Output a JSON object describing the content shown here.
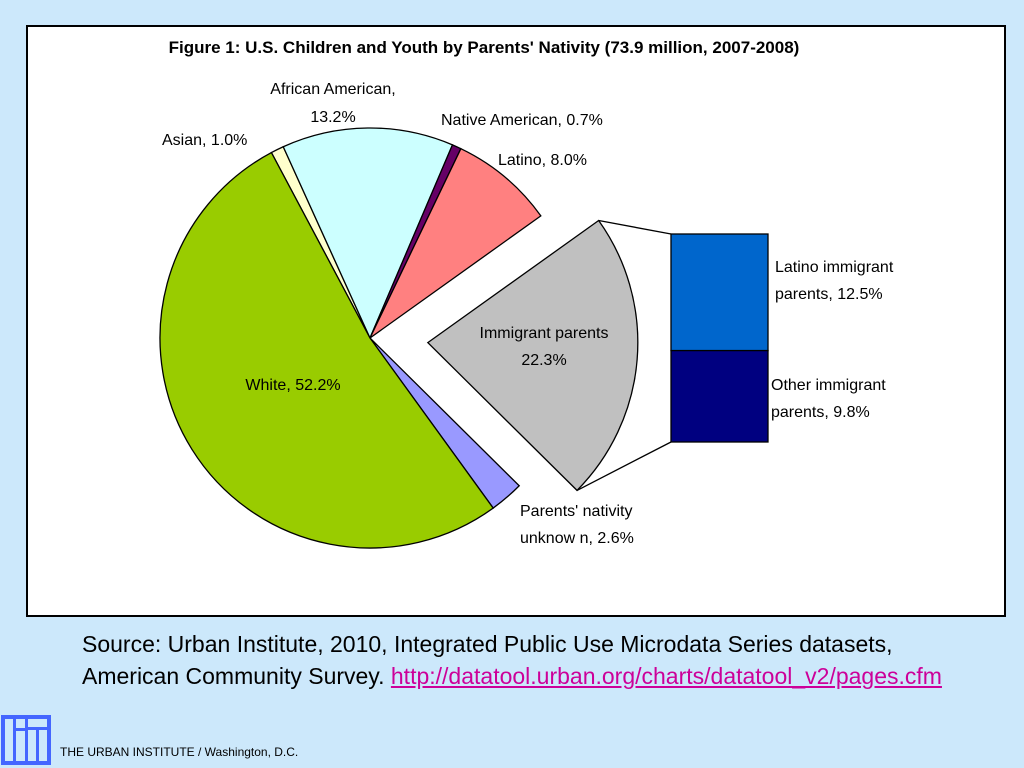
{
  "chart_data": {
    "type": "pie",
    "title": "Figure 1: U.S. Children and Youth by Parents' Nativity (73.9 million, 2007-2008)",
    "slices": [
      {
        "label": "Asian, 1.0%",
        "value": 1.0,
        "color": "#ffffcc"
      },
      {
        "label": "African American, 13.2%",
        "value": 13.2,
        "color": "#ccffff"
      },
      {
        "label": "Native American, 0.7%",
        "value": 0.7,
        "color": "#660066"
      },
      {
        "label": "Latino, 8.0%",
        "value": 8.0,
        "color": "#ff8080"
      },
      {
        "label": "Immigrant parents 22.3%",
        "value": 22.3,
        "color": "#c0c0c0",
        "exploded": true
      },
      {
        "label": "Parents' nativity unknow n, 2.6%",
        "value": 2.6,
        "color": "#9999ff"
      },
      {
        "label": "White, 52.2%",
        "value": 52.2,
        "color": "#99cc00"
      }
    ],
    "breakdown": {
      "of": "Immigrant parents 22.3%",
      "items": [
        {
          "label": "Latino immigrant parents, 12.5%",
          "value": 12.5,
          "color": "#0066cc"
        },
        {
          "label": "Other immigrant parents, 9.8%",
          "value": 9.8,
          "color": "#000080"
        }
      ]
    }
  },
  "labels": {
    "african_american_1": "African American,",
    "african_american_2": "13.2%",
    "native_american": "Native American, 0.7%",
    "asian": "Asian, 1.0%",
    "latino": "Latino, 8.0%",
    "immigrant_1": "Immigrant parents",
    "immigrant_2": "22.3%",
    "white": "White, 52.2%",
    "unknown_1": "Parents' nativity",
    "unknown_2": "unknow n, 2.6%",
    "latino_immigrant_1": "Latino immigrant",
    "latino_immigrant_2": "parents, 12.5%",
    "other_immigrant_1": "Other immigrant",
    "other_immigrant_2": "parents, 9.8%"
  },
  "source": {
    "text_line1": "Source: Urban Institute, 2010, Integrated Public Use Microdata Series datasets,",
    "text_line2": "American Community Survey. ",
    "link": "http://datatool.urban.org/charts/datatool_v2/pages.cfm"
  },
  "footer": {
    "text": "THE URBAN INSTITUTE / Washington, D.C."
  }
}
